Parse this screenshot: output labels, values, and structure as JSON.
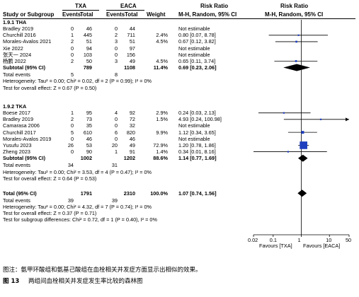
{
  "header": {
    "group1": "TXA",
    "group2": "EACA",
    "effect_title": "Risk Ratio",
    "plot_title": "Risk Ratio",
    "col_study": "Study or Subgroup",
    "col_events1": "Events",
    "col_total1": "Total",
    "col_events2": "Events",
    "col_total2": "Total",
    "col_weight": "Weight",
    "col_method": "M-H, Random, 95% CI",
    "plot_method": "M-H, Random, 95% CI"
  },
  "subgroups": [
    {
      "title": "1.9.1 THA",
      "studies": [
        {
          "name": "Bradley 2019",
          "e1": "0",
          "t1": "46",
          "e2": "0",
          "t2": "44",
          "weight": "",
          "ci": "Not estimable"
        },
        {
          "name": "Churchill 2016",
          "e1": "1",
          "t1": "445",
          "e2": "2",
          "t2": "711",
          "weight": "2.4%",
          "ci": "0.80 [0.07, 8.78]"
        },
        {
          "name": "Morales-Avalos 2021",
          "e1": "2",
          "t1": "51",
          "e2": "3",
          "t2": "51",
          "weight": "4.5%",
          "ci": "0.67 [0.12, 3.82]"
        },
        {
          "name": "Xie 2022",
          "e1": "0",
          "t1": "94",
          "e2": "0",
          "t2": "97",
          "weight": "",
          "ci": "Not estimable"
        },
        {
          "name": "张天一 2024",
          "e1": "0",
          "t1": "103",
          "e2": "0",
          "t2": "156",
          "weight": "",
          "ci": "Not estimable"
        },
        {
          "name": "杨鹏 2022",
          "e1": "2",
          "t1": "50",
          "e2": "3",
          "t2": "49",
          "weight": "4.5%",
          "ci": "0.65 [0.11, 3.74]"
        }
      ],
      "subtotal": {
        "name": "Subtotal (95% CI)",
        "t1": "789",
        "t2": "1108",
        "weight": "11.4%",
        "ci": "0.69 [0.23, 2.06]"
      },
      "total_events": {
        "name": "Total events",
        "e1": "5",
        "e2": "8"
      },
      "heterogeneity": "Heterogeneity: Tau² = 0.00; Chi² = 0.02, df = 2 (P = 0.99); I² = 0%",
      "overall": "Test for overall effect: Z = 0.67 (P = 0.50)"
    },
    {
      "title": "1.9.2 TKA",
      "studies": [
        {
          "name": "Boese 2017",
          "e1": "1",
          "t1": "95",
          "e2": "4",
          "t2": "92",
          "weight": "2.9%",
          "ci": "0.24 [0.03, 2.13]"
        },
        {
          "name": "Bradley 2019",
          "e1": "2",
          "t1": "73",
          "e2": "0",
          "t2": "72",
          "weight": "1.5%",
          "ci": "4.93 [0.24, 100.98]"
        },
        {
          "name": "Camarasa 2006",
          "e1": "0",
          "t1": "35",
          "e2": "0",
          "t2": "32",
          "weight": "",
          "ci": "Not estimable"
        },
        {
          "name": "Churchill 2017",
          "e1": "5",
          "t1": "610",
          "e2": "6",
          "t2": "820",
          "weight": "9.9%",
          "ci": "1.12 [0.34, 3.65]"
        },
        {
          "name": "Morales-Avalos 2019",
          "e1": "0",
          "t1": "46",
          "e2": "0",
          "t2": "46",
          "weight": "",
          "ci": "Not estimable"
        },
        {
          "name": "Yusufu 2023",
          "e1": "26",
          "t1": "53",
          "e2": "20",
          "t2": "49",
          "weight": "72.9%",
          "ci": "1.20 [0.78, 1.86]"
        },
        {
          "name": "Zheng 2023",
          "e1": "0",
          "t1": "90",
          "e2": "1",
          "t2": "91",
          "weight": "1.4%",
          "ci": "0.34 [0.01, 8.16]"
        }
      ],
      "subtotal": {
        "name": "Subtotal (95% CI)",
        "t1": "1002",
        "t2": "1202",
        "weight": "88.6%",
        "ci": "1.14 [0.77, 1.69]"
      },
      "total_events": {
        "name": "Total events",
        "e1": "34",
        "e2": "31"
      },
      "heterogeneity": "Heterogeneity: Tau² = 0.00; Chi² = 3.53, df = 4 (P = 0.47); I² = 0%",
      "overall": "Test for overall effect: Z = 0.64 (P = 0.53)"
    }
  ],
  "total": {
    "name": "Total (95% CI)",
    "t1": "1791",
    "t2": "2310",
    "weight": "100.0%",
    "ci": "1.07 [0.74, 1.56]"
  },
  "total_events": {
    "name": "Total events",
    "e1": "39",
    "e2": "39"
  },
  "total_heterogeneity": "Heterogeneity: Tau² = 0.00; Chi² = 4.32, df = 7 (P = 0.74); I² = 0%",
  "total_overall": "Test for overall effect: Z = 0.37 (P = 0.71)",
  "subgroup_diff": "Test for subgroup differences: Chi² = 0.72, df = 1 (P = 0.40), I² = 0%",
  "axis": {
    "ticks": [
      "0.02",
      "0.1",
      "1",
      "10",
      "50"
    ],
    "favours_left": "Favours [TXA]",
    "favours_right": "Favours [EACA]"
  },
  "caption": "图注：氨甲环酸组和氨基己酸组在血栓相关并发症方面显示出相似的效果。",
  "figure_label": "图 13",
  "figure_title": "两组间血栓相关并发症发生率比较的森林图",
  "chart_data": {
    "type": "forest",
    "scale": "log",
    "xlim": [
      0.02,
      50
    ],
    "reference_line": 1,
    "subgroups": [
      {
        "name": "1.9.1 THA",
        "studies": [
          {
            "study": "Churchill 2016",
            "rr": 0.8,
            "lo": 0.07,
            "hi": 8.78,
            "weight": 2.4
          },
          {
            "study": "Morales-Avalos 2021",
            "rr": 0.67,
            "lo": 0.12,
            "hi": 3.82,
            "weight": 4.5
          },
          {
            "study": "杨鹏 2022",
            "rr": 0.65,
            "lo": 0.11,
            "hi": 3.74,
            "weight": 4.5
          }
        ],
        "pooled": {
          "rr": 0.69,
          "lo": 0.23,
          "hi": 2.06
        }
      },
      {
        "name": "1.9.2 TKA",
        "studies": [
          {
            "study": "Boese 2017",
            "rr": 0.24,
            "lo": 0.03,
            "hi": 2.13,
            "weight": 2.9
          },
          {
            "study": "Bradley 2019",
            "rr": 4.93,
            "lo": 0.24,
            "hi": 100.98,
            "weight": 1.5
          },
          {
            "study": "Churchill 2017",
            "rr": 1.12,
            "lo": 0.34,
            "hi": 3.65,
            "weight": 9.9
          },
          {
            "study": "Yusufu 2023",
            "rr": 1.2,
            "lo": 0.78,
            "hi": 1.86,
            "weight": 72.9
          },
          {
            "study": "Zheng 2023",
            "rr": 0.34,
            "lo": 0.01,
            "hi": 8.16,
            "weight": 1.4
          }
        ],
        "pooled": {
          "rr": 1.14,
          "lo": 0.77,
          "hi": 1.69
        }
      }
    ],
    "overall": {
      "rr": 1.07,
      "lo": 0.74,
      "hi": 1.56
    },
    "square_color": "#1f3fbf"
  }
}
